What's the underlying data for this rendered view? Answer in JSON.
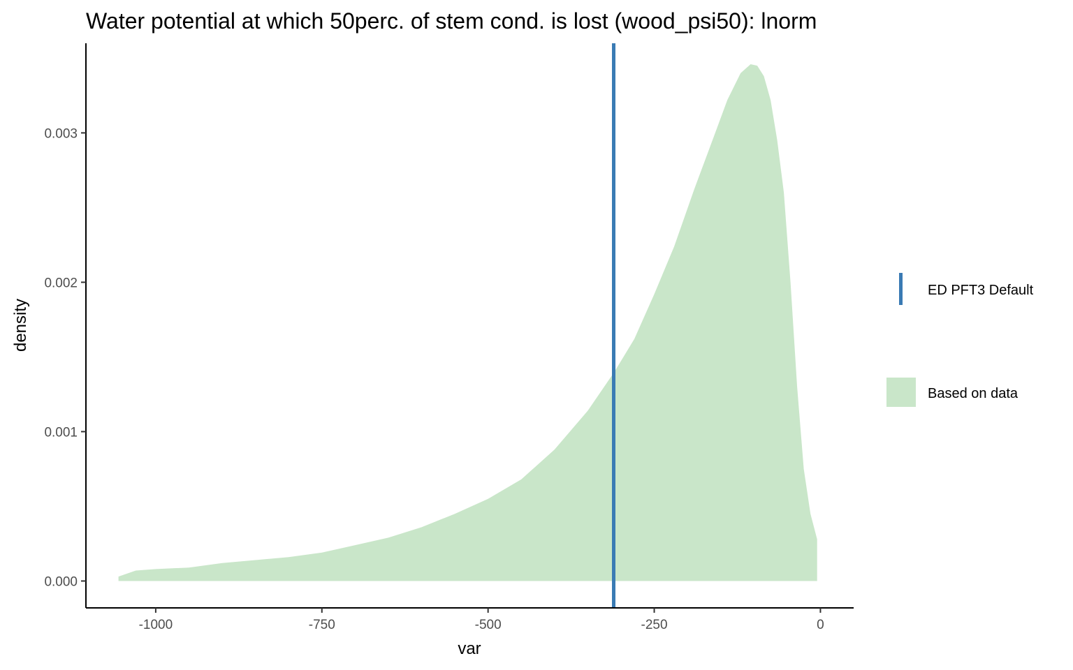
{
  "chart_data": {
    "type": "area",
    "title": "Water potential at which 50perc. of stem cond. is lost (wood_psi50): lnorm",
    "xlabel": "var",
    "ylabel": "density",
    "xlim": [
      -1105,
      50
    ],
    "ylim": [
      -0.00018,
      0.0036
    ],
    "x_ticks": [
      -1000,
      -750,
      -500,
      -250,
      0
    ],
    "x_tick_labels": [
      "-1000",
      "-750",
      "-500",
      "-250",
      "0"
    ],
    "y_ticks": [
      0.0,
      0.001,
      0.002,
      0.003
    ],
    "y_tick_labels": [
      "0.000",
      "0.001",
      "0.002",
      "0.003"
    ],
    "grid": false,
    "legend_position": "right",
    "series": [
      {
        "name": "Based on data",
        "kind": "density-area",
        "color": "#c9e6c9",
        "x": [
          -1056,
          -1030,
          -1000,
          -950,
          -900,
          -850,
          -800,
          -750,
          -700,
          -650,
          -600,
          -550,
          -500,
          -450,
          -400,
          -350,
          -310,
          -280,
          -250,
          -220,
          -190,
          -160,
          -140,
          -120,
          -105,
          -95,
          -85,
          -75,
          -65,
          -55,
          -45,
          -35,
          -25,
          -15,
          -5
        ],
        "y": [
          3e-05,
          7e-05,
          8e-05,
          9e-05,
          0.00012,
          0.00014,
          0.00016,
          0.00019,
          0.00024,
          0.00029,
          0.00036,
          0.00045,
          0.00055,
          0.00068,
          0.00088,
          0.00114,
          0.0014,
          0.00162,
          0.00192,
          0.00224,
          0.00262,
          0.00298,
          0.00322,
          0.0034,
          0.00346,
          0.00345,
          0.00338,
          0.00322,
          0.00295,
          0.0026,
          0.002,
          0.0013,
          0.00075,
          0.00045,
          0.00028
        ]
      },
      {
        "name": "ED PFT3 Default",
        "kind": "vline",
        "color": "#3a7bb4",
        "x": -311
      }
    ]
  }
}
